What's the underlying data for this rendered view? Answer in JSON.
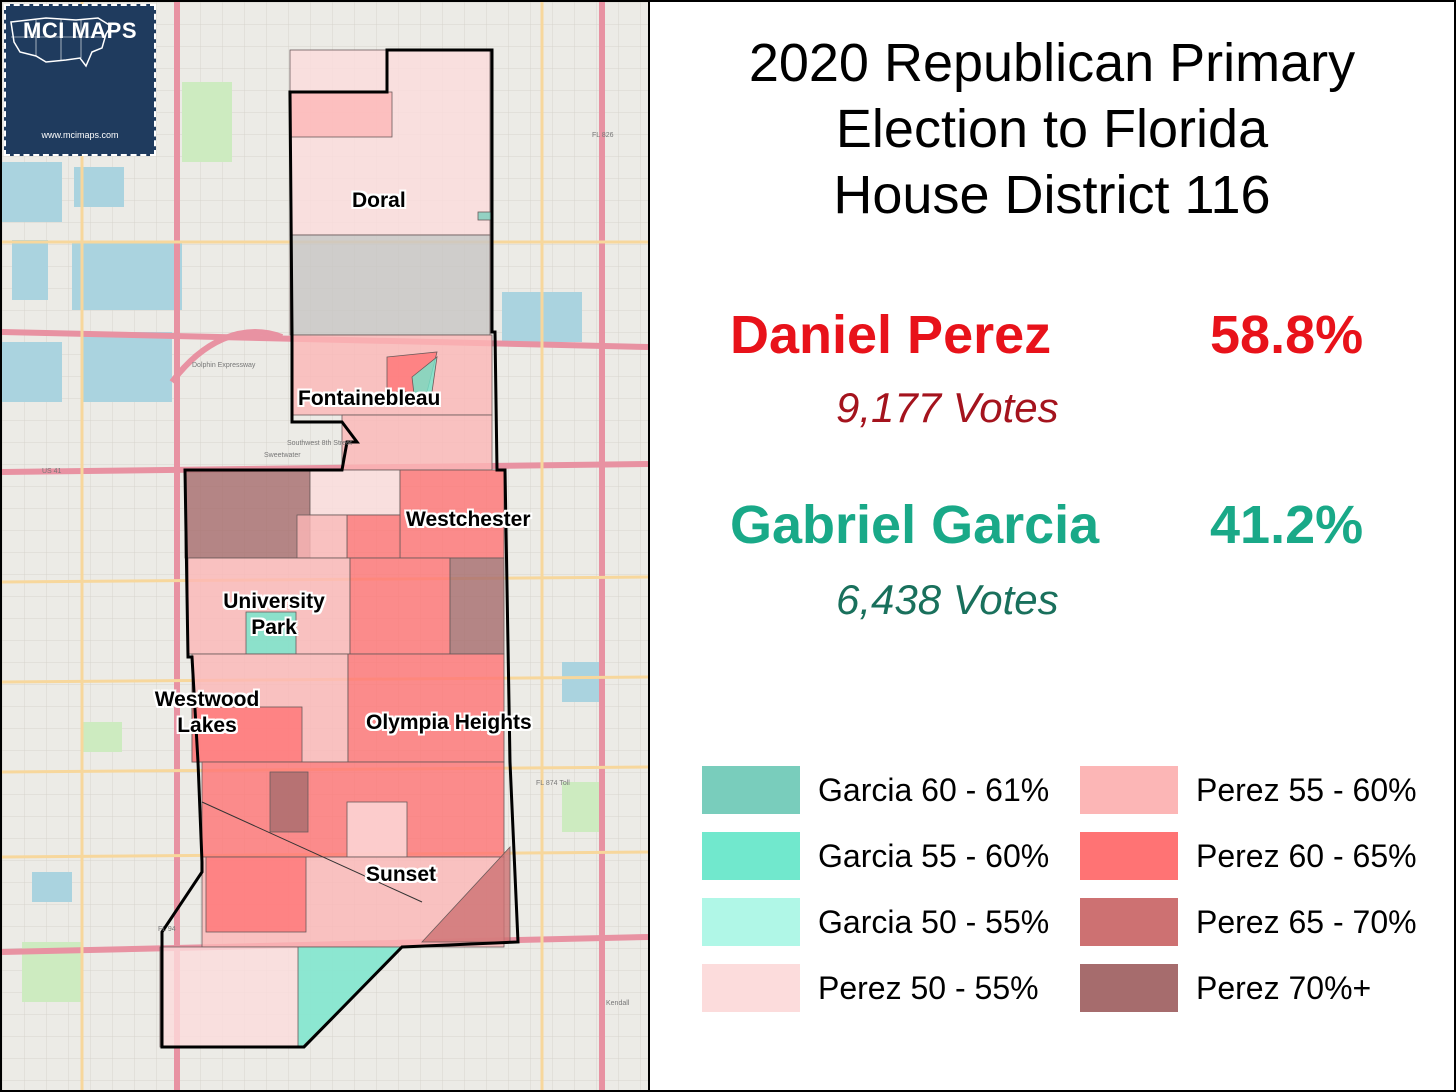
{
  "logo": {
    "name": "MCI MAPS",
    "url": "www.mcimaps.com"
  },
  "title_lines": [
    "2020 Republican Primary",
    "Election to Florida",
    "House District 116"
  ],
  "candidates": [
    {
      "name": "Daniel Perez",
      "pct": "58.8%",
      "votes": "9,177  Votes",
      "color": "#e8121a",
      "votes_color": "#a4131d"
    },
    {
      "name": "Gabriel Garcia",
      "pct": "41.2%",
      "votes": "6,438  Votes",
      "color": "#19a988",
      "votes_color": "#19705c"
    }
  ],
  "places": {
    "doral": "Doral",
    "fontainebleau": "Fontainebleau",
    "westchester": "Westchester",
    "university_park": [
      "University",
      "Park"
    ],
    "westwood_lakes": [
      "Westwood",
      "Lakes"
    ],
    "olympia_heights": "Olympia Heights",
    "sunset": "Sunset"
  },
  "legend": [
    {
      "label": "Garcia 60 - 61%",
      "color": "#79cdbc"
    },
    {
      "label": "Garcia 55 - 60%",
      "color": "#71e8cd"
    },
    {
      "label": "Garcia 50 - 55%",
      "color": "#b0f7e7"
    },
    {
      "label": "Perez 50 - 55%",
      "color": "#fcdcdc"
    },
    {
      "label": "Perez 55 - 60%",
      "color": "#fcb6b6"
    },
    {
      "label": "Perez 60 - 65%",
      "color": "#ff7374"
    },
    {
      "label": "Perez 65 - 70%",
      "color": "#cd7172"
    },
    {
      "label": "Perez 70%+",
      "color": "#a66c6d"
    }
  ],
  "roads": [
    "Dolphin Expressway",
    "Southwest 8th Street",
    "US 41",
    "FL 826",
    "FL 874 Toll",
    "FL 94",
    "Kendall",
    "Sweetwater"
  ]
}
